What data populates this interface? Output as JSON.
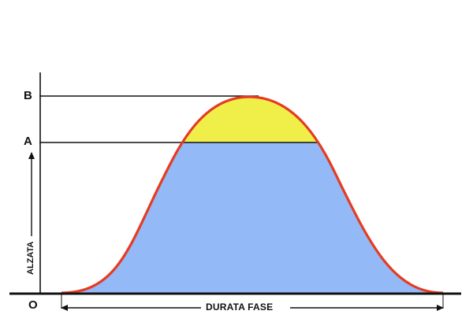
{
  "labels": {
    "level_b": "B",
    "level_a": "A",
    "origin": "O",
    "vertical_axis": "ALZATA",
    "horizontal_axis": "DURATA FASE"
  },
  "colors": {
    "background": "#ffffff",
    "curve_outline": "#e53b22",
    "fill_below_a": "#93b9f7",
    "fill_above_a": "#f0ef4a",
    "axis_lines": "#111111"
  }
}
